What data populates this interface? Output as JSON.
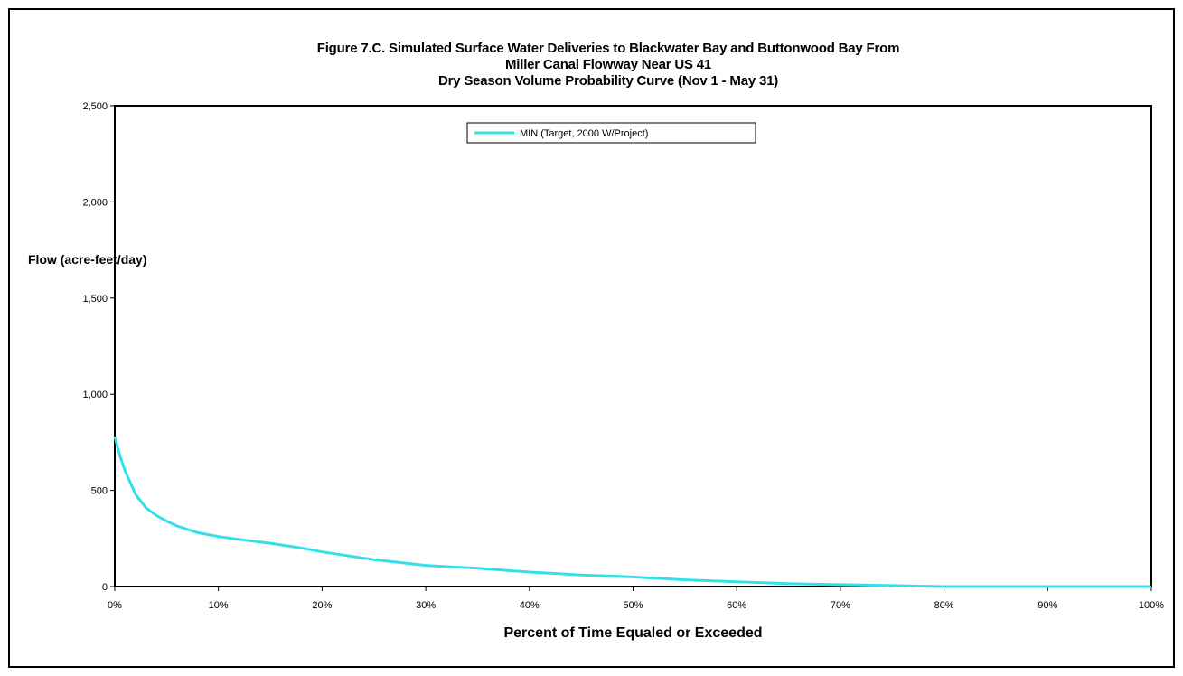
{
  "chart_data": {
    "type": "line",
    "title_lines": [
      "Figure 7.C. Simulated Surface Water Deliveries to Blackwater Bay and Buttonwood Bay From",
      "Miller Canal Flowway Near US 41",
      "Dry Season Volume Probability Curve (Nov 1 - May 31)"
    ],
    "xlabel": "Percent of Time Equaled or Exceeded",
    "ylabel": "Flow (acre-feet/day)",
    "xlim": [
      0,
      100
    ],
    "ylim": [
      0,
      2500
    ],
    "x_ticks": [
      "0%",
      "10%",
      "20%",
      "30%",
      "40%",
      "50%",
      "60%",
      "70%",
      "80%",
      "90%",
      "100%"
    ],
    "y_ticks": [
      "0",
      "500",
      "1,000",
      "1,500",
      "2,000",
      "2,500"
    ],
    "grid": false,
    "legend_position": "top-center",
    "series": [
      {
        "name": "MIN (Target, 2000 W/Project)",
        "color": "#33e0e8",
        "x": [
          0,
          0.5,
          1,
          2,
          3,
          4,
          5,
          6,
          8,
          10,
          12,
          15,
          18,
          20,
          25,
          30,
          35,
          40,
          45,
          50,
          55,
          60,
          65,
          70,
          75,
          78,
          80,
          85,
          90,
          95,
          100
        ],
        "y": [
          780,
          680,
          600,
          480,
          410,
          370,
          340,
          315,
          280,
          260,
          245,
          225,
          200,
          180,
          140,
          110,
          95,
          75,
          60,
          50,
          35,
          25,
          15,
          10,
          5,
          2,
          0,
          0,
          0,
          0,
          0
        ]
      }
    ]
  }
}
